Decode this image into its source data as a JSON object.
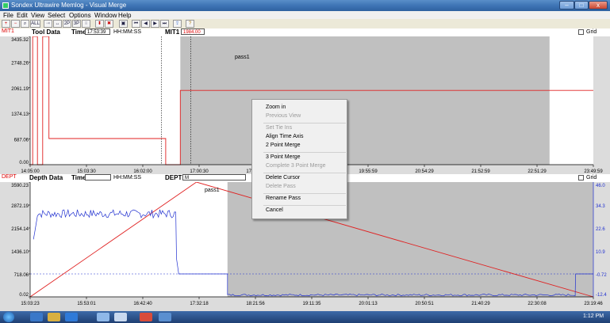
{
  "window": {
    "title": "Sondex Ultrawire Memlog - Visual Merge",
    "btn_min": "–",
    "btn_max": "□",
    "btn_close": "x"
  },
  "menu": [
    "File",
    "Edit",
    "View",
    "Select",
    "Options",
    "Window",
    "Help"
  ],
  "toolbar": {
    "icons": [
      "zoom-in-icon",
      "zoom-out-icon",
      "zoom-select-icon",
      "zoom-all-icon",
      "tie-in-icon",
      "two-point-icon",
      "three-point-icon",
      "pass-icon",
      "delete-icon",
      "view-icon",
      "first-icon",
      "prev-icon",
      "next-icon",
      "last-icon",
      "merge-icon",
      "help-icon"
    ],
    "all_label": "ALL",
    "two_p": "2P",
    "three_p": "3P"
  },
  "tool_panel": {
    "axis_name": "MIT1",
    "title": "Tool Data",
    "time_label": "Time",
    "time_value": "17:53:39",
    "time_format": "HH:MM:SS",
    "curve_label": "MIT1",
    "curve_value": "1984.00",
    "grid_label": "Grid",
    "pass_label": "pass1"
  },
  "depth_panel": {
    "axis_name": "DEPT",
    "title": "Depth Data",
    "time_label": "Time",
    "time_format": "HH:MM:SS",
    "curve_label": "DEPT",
    "curve_unit": "M",
    "grid_label": "Grid",
    "pass_label": "pass1"
  },
  "chart_data": [
    {
      "type": "line",
      "title": "Tool Data",
      "ylabel": "MIT1",
      "ylim": [
        0.0,
        3435.32
      ],
      "y_ticks": [
        "3435.32",
        "2748.26",
        "2061.19",
        "1374.13",
        "687.06",
        "0.00"
      ],
      "x_ticks": [
        "14:05:00",
        "15:03:30",
        "16:02:00",
        "17:00:30",
        "17:59:00",
        "18:57:30",
        "19:55:59",
        "20:54:29",
        "21:52:59",
        "22:51:29",
        "23:49:59"
      ],
      "series": [
        {
          "color": "#e02020",
          "points": [
            [
              0,
              0
            ],
            [
              0.12,
              0
            ],
            [
              0.12,
              3435
            ],
            [
              0.35,
              3435
            ],
            [
              0.35,
              0
            ],
            [
              0.6,
              0
            ],
            [
              0.6,
              3435
            ],
            [
              0.9,
              3435
            ],
            [
              0.9,
              700
            ],
            [
              6.5,
              700
            ],
            [
              6.5,
              0
            ],
            [
              7.2,
              0
            ],
            [
              7.2,
              1990
            ],
            [
              27,
              1990
            ]
          ]
        }
      ],
      "shaded_region": {
        "x_start": 7.2,
        "x_end": 24.9,
        "color": "#c0c0c0"
      },
      "cursor_x": [
        6.3,
        7.7
      ],
      "grid": false
    },
    {
      "type": "line",
      "title": "Depth Data",
      "ylabel": "DEPT",
      "ylim": [
        0.02,
        3590.23
      ],
      "y_ticks": [
        "3590.23",
        "2872.19",
        "2154.14",
        "1436.10",
        "718.06",
        "0.02"
      ],
      "y2_ticks": [
        "46.0",
        "34.3",
        "22.6",
        "10.9",
        "-0.72",
        "-12.4"
      ],
      "x_ticks": [
        "15:03:23",
        "15:53:01",
        "16:42:40",
        "17:32:18",
        "18:21:56",
        "19:11:35",
        "20:01:13",
        "20:50:51",
        "21:40:29",
        "22:30:08",
        "23:19:46"
      ],
      "series": [
        {
          "name": "DEPT",
          "color": "#e02020",
          "shape": "triangle",
          "start": 0.02,
          "peak_x": 7.5,
          "peak": 3590,
          "end": 0.02
        },
        {
          "color": "#2030d0",
          "shape": "noisy",
          "level_1": 2600,
          "level_1_end": 6.6,
          "drop_x": 6.7,
          "level_2": 718,
          "shaded_x": 8.9,
          "level_3": 60,
          "end_x": 24.6
        }
      ],
      "shaded_region": {
        "x_start": 8.9,
        "x_end": 25.4,
        "color": "#c0c0c0"
      },
      "reference_line": {
        "y": 718.06,
        "style": "dashed",
        "color": "#2030d0"
      },
      "grid": false
    }
  ],
  "context_menu": {
    "items": [
      {
        "label": "Zoom in",
        "enabled": true
      },
      {
        "label": "Previous View",
        "enabled": false
      },
      {
        "sep": true
      },
      {
        "label": "Set Tie Ins",
        "enabled": false
      },
      {
        "label": "Align Time Axis",
        "enabled": true
      },
      {
        "label": "2 Point Merge",
        "enabled": true
      },
      {
        "sep": true
      },
      {
        "label": "3 Point Merge",
        "enabled": true
      },
      {
        "label": "Complete 3 Point Merge",
        "enabled": false
      },
      {
        "sep": true
      },
      {
        "label": "Delete Cursor",
        "enabled": true
      },
      {
        "label": "Delete Pass",
        "enabled": false
      },
      {
        "sep": true
      },
      {
        "label": "Rename Pass",
        "enabled": true
      },
      {
        "sep": true
      },
      {
        "label": "Cancel",
        "enabled": true
      }
    ]
  },
  "taskbar": {
    "clock": "1:12 PM"
  }
}
